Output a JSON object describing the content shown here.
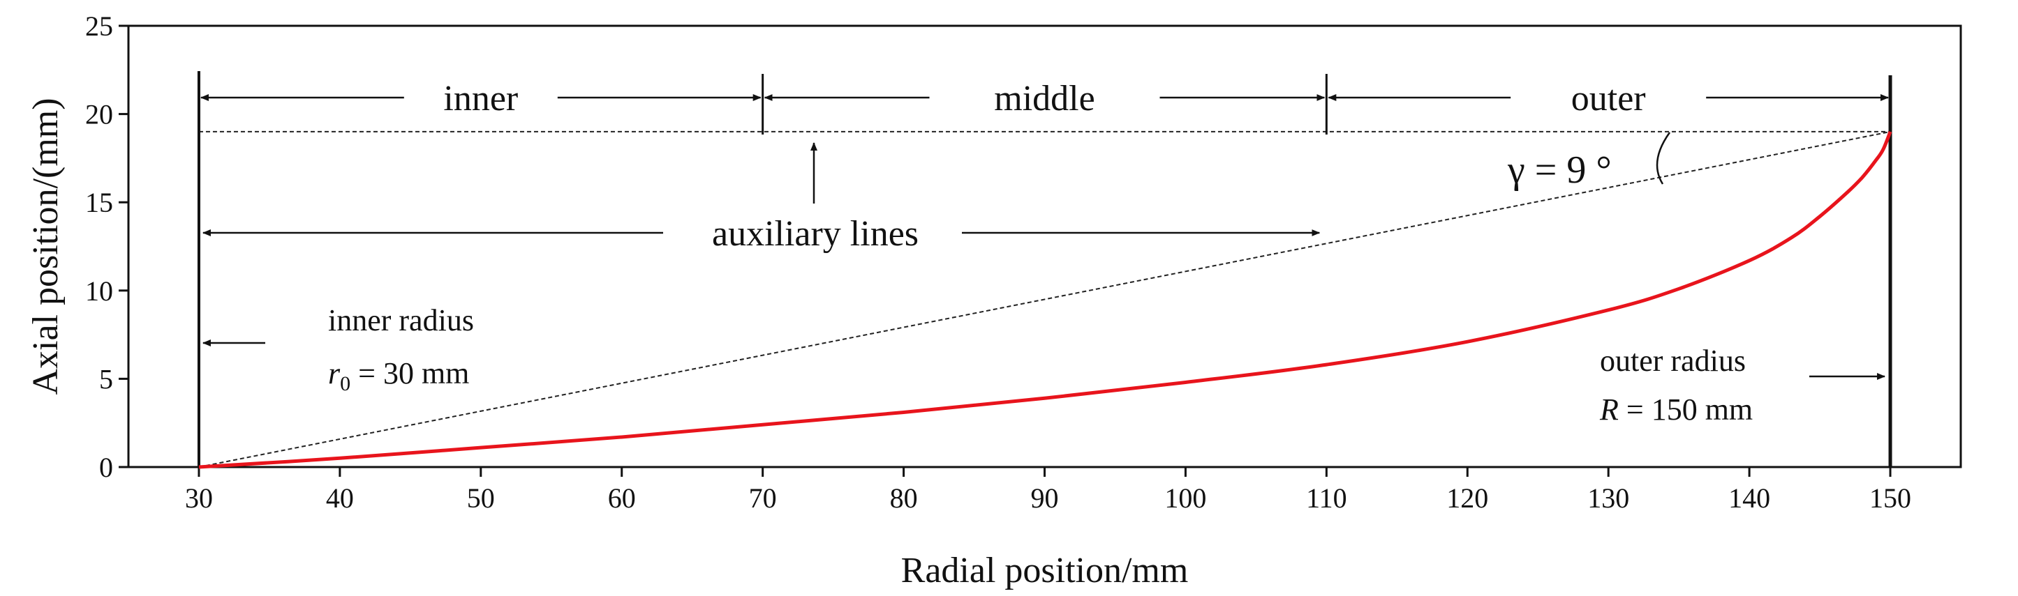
{
  "chart_data": {
    "type": "line",
    "xlabel": "Radial position/mm",
    "ylabel": "Axial position/(mm)",
    "xlim": [
      25,
      155
    ],
    "ylim": [
      0,
      25
    ],
    "xticks": [
      30,
      40,
      50,
      60,
      70,
      80,
      90,
      100,
      110,
      120,
      130,
      140,
      150
    ],
    "yticks": [
      0,
      5,
      10,
      15,
      20,
      25
    ],
    "grid": false,
    "series": [
      {
        "color": "#e8141c",
        "x": [
          30,
          40,
          50,
          60,
          70,
          80,
          90,
          100,
          110,
          120,
          130,
          135,
          140,
          143,
          145,
          147,
          148,
          149,
          149.5,
          150
        ],
        "y": [
          0,
          0.5,
          1.1,
          1.7,
          2.4,
          3.1,
          3.9,
          4.8,
          5.8,
          7.1,
          8.9,
          10.1,
          11.7,
          13.0,
          14.2,
          15.6,
          16.4,
          17.4,
          18.0,
          19.0
        ]
      }
    ],
    "top_line": {
      "y": 19
    },
    "zones": [
      {
        "label": "inner",
        "from": 30,
        "to": 70
      },
      {
        "label": "middle",
        "from": 70,
        "to": 110
      },
      {
        "label": "outer",
        "from": 110,
        "to": 150
      }
    ],
    "annotations": {
      "auxiliary": "auxiliary lines",
      "gamma": "γ = 9 °",
      "inner_radius_line1": "inner radius",
      "inner_radius_sym": "r",
      "inner_radius_sub": "0",
      "inner_radius_val": " = 30 mm",
      "outer_radius_line1": "outer radius",
      "outer_radius_sym": "R",
      "outer_radius_val": " = 150 mm"
    }
  }
}
